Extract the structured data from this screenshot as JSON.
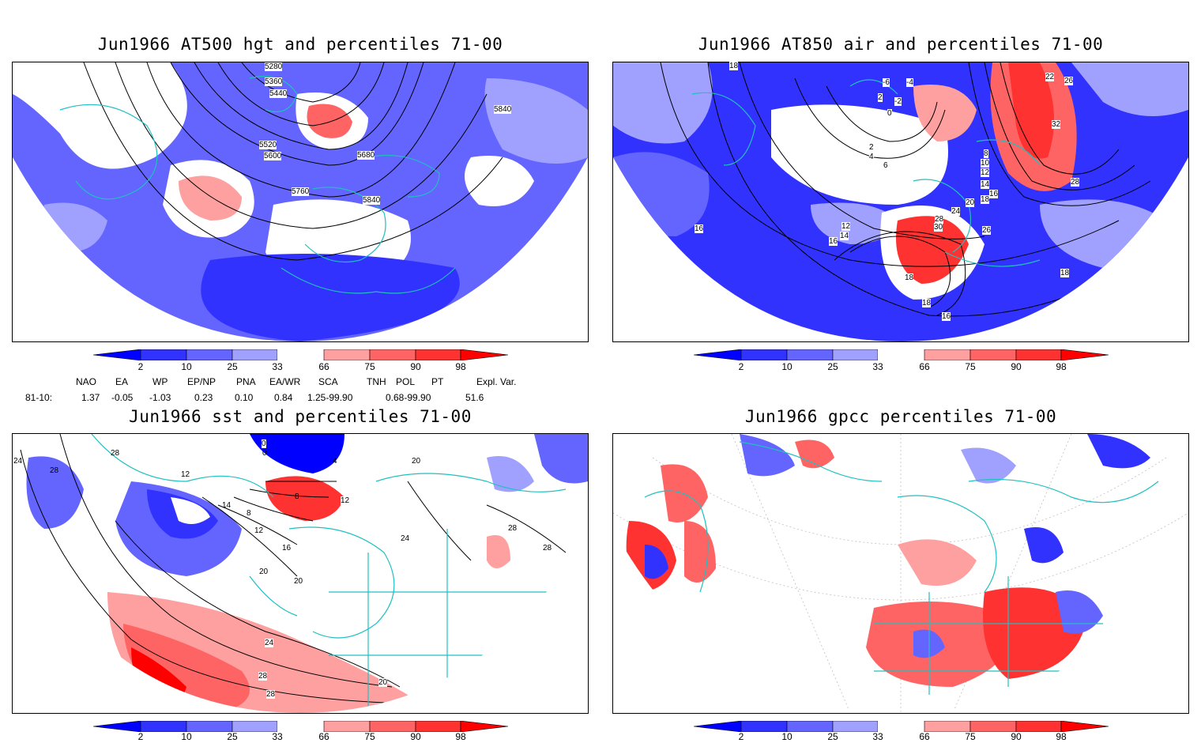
{
  "panels": {
    "p1": {
      "title": "Jun1966 AT500 hgt and percentiles 71-00",
      "labels": [
        "5280",
        "5360",
        "5440",
        "5520",
        "5600",
        "5680",
        "5760",
        "5840",
        "5840"
      ]
    },
    "p2": {
      "title": "Jun1966 AT850 air and percentiles 71-00",
      "labels": [
        "18",
        "-6",
        "-4",
        "2",
        "-2",
        "0",
        "2",
        "4",
        "6",
        "8",
        "10",
        "12",
        "14",
        "16",
        "18",
        "20",
        "22",
        "24",
        "26",
        "28",
        "30",
        "32",
        "16",
        "12",
        "14",
        "16",
        "18",
        "26",
        "28",
        "18",
        "16",
        "18"
      ]
    },
    "p3": {
      "title": "Jun1966 sst and percentiles 71-00",
      "labels": [
        "24",
        "28",
        "28",
        "0",
        "0",
        "12",
        "4",
        "8",
        "12",
        "14",
        "8",
        "12",
        "16",
        "20",
        "20",
        "20",
        "24",
        "28",
        "28",
        "24",
        "28",
        "28",
        "20"
      ]
    },
    "p4": {
      "title": "Jun1966 gpcc percentiles 71-00",
      "labels": []
    }
  },
  "colorbar": {
    "ticks": [
      "2",
      "10",
      "25",
      "33",
      "66",
      "75",
      "90",
      "98"
    ],
    "colors": [
      "#0000ff",
      "#3232ff",
      "#6464ff",
      "#a0a0ff",
      "#ffffff",
      "#ffa0a0",
      "#ff6464",
      "#ff3232",
      "#ff0000"
    ]
  },
  "teleconnections": {
    "headers": [
      "NAO",
      "EA",
      "WP",
      "EP/NP",
      "PNA",
      "EA/WR",
      "SCA",
      "TNH",
      "POL",
      "PT",
      "Expl. Var."
    ],
    "row_label": "81-10:",
    "values": [
      "1.37",
      "-0.05",
      "-1.03",
      "0.23",
      "0.10",
      "0.84",
      "1.25-99.90",
      "",
      "0.68-99.90",
      "",
      "51.6"
    ]
  },
  "style": {
    "coast": "#20c0c0",
    "contour": "#000000"
  }
}
